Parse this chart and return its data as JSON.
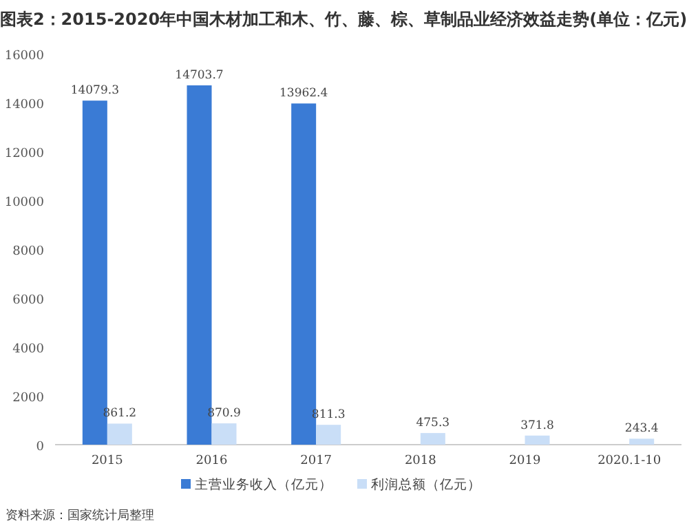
{
  "chart_data": {
    "type": "bar",
    "title": "图表2：2015-2020年中国木材加工和木、竹、藤、棕、草制品业经济效益走势(单位：亿元)",
    "categories": [
      "2015",
      "2016",
      "2017",
      "2018",
      "2019",
      "2020.1-10"
    ],
    "series": [
      {
        "name": "主营业务收入（亿元）",
        "color": "#3a7bd5",
        "values": [
          14079.3,
          14703.7,
          13962.4,
          null,
          null,
          null
        ]
      },
      {
        "name": "利润总额（亿元）",
        "color": "#c9def7",
        "values": [
          861.2,
          870.9,
          811.3,
          475.3,
          371.8,
          243.4
        ]
      }
    ],
    "ylim": [
      0,
      16000
    ],
    "yticks": [
      0,
      2000,
      4000,
      6000,
      8000,
      10000,
      12000,
      14000,
      16000
    ],
    "data_labels": true,
    "legend": "bottom",
    "grid": false,
    "annotations": [
      "资料来源：国家统计局整理"
    ]
  }
}
